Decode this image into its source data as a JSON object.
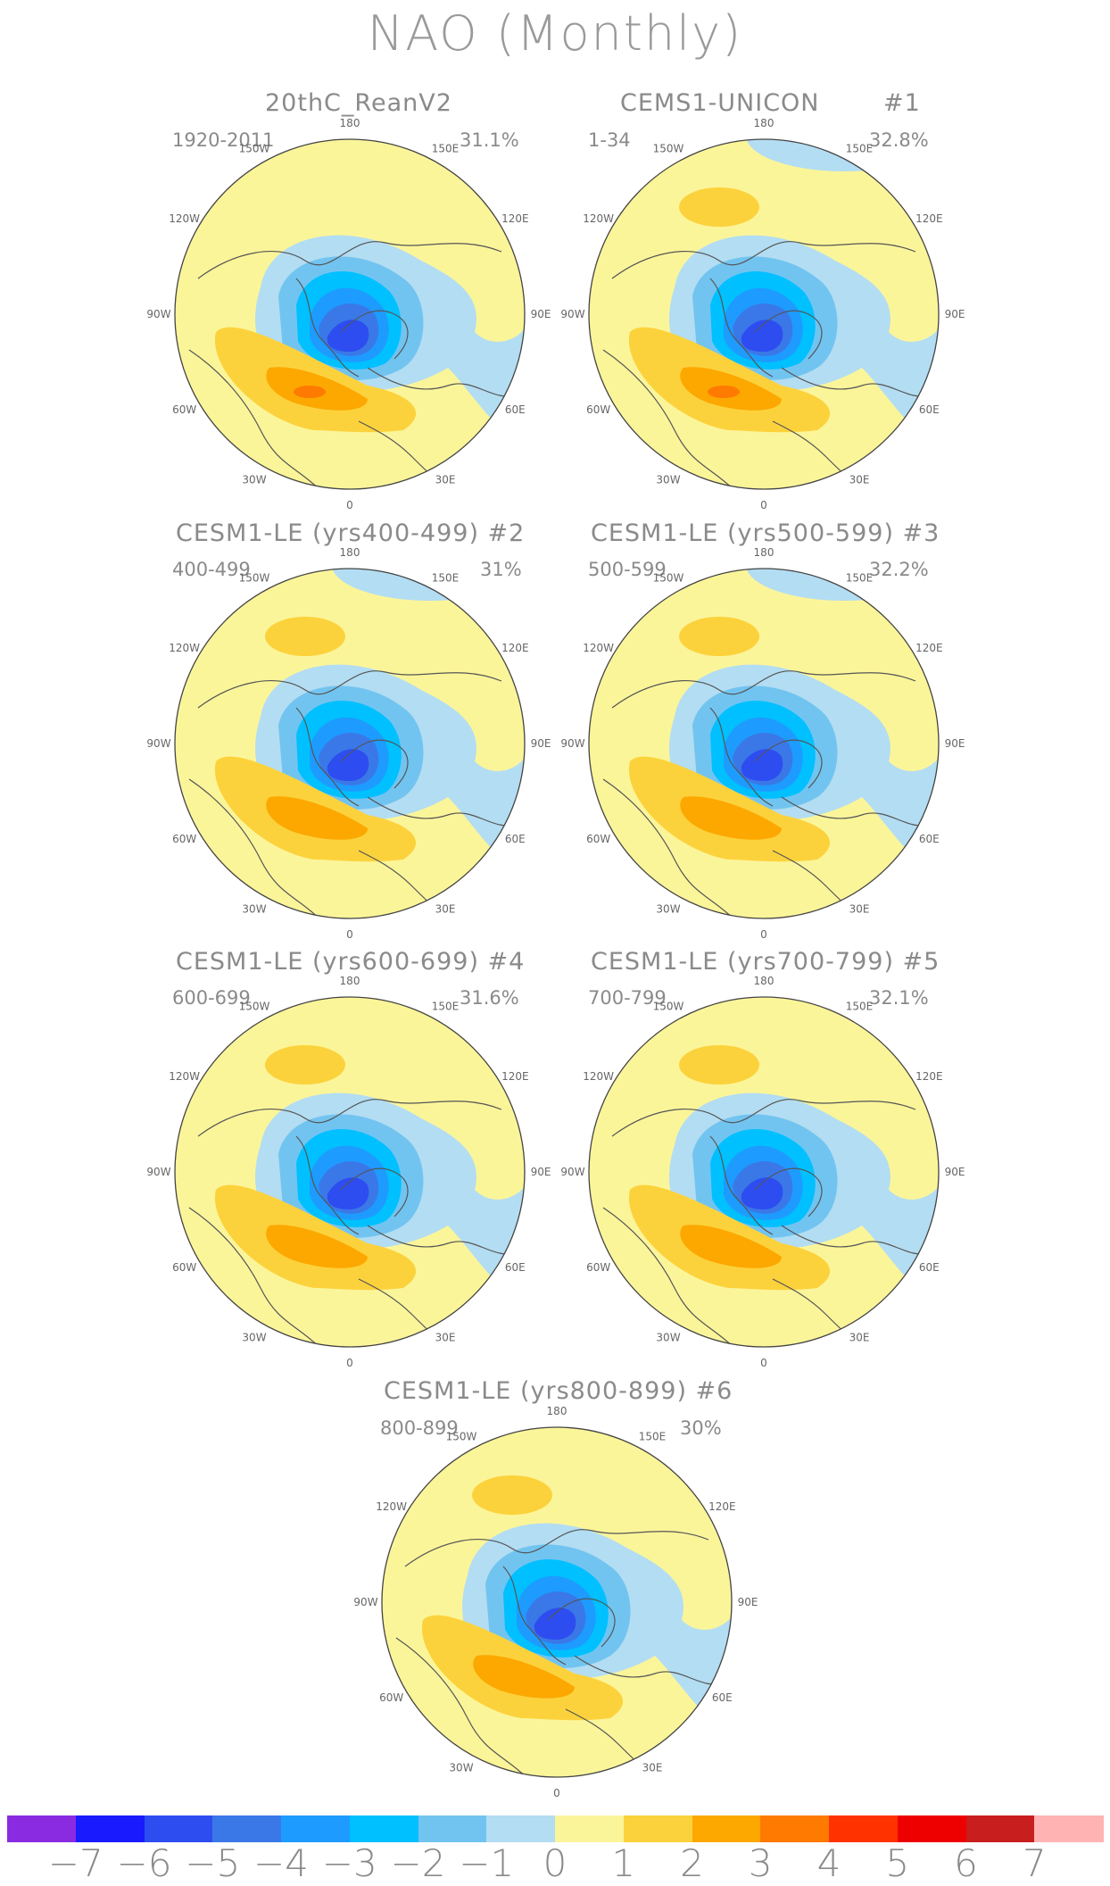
{
  "title": "NAO (Monthly)",
  "colors": {
    "land": "#555555",
    "border": "#444444"
  },
  "panels": [
    {
      "title": "20thC_ReanV2",
      "period": "1920-2011",
      "percent": "31.1%",
      "tag": ""
    },
    {
      "title": "CEMS1-UNICON",
      "period": "1-34",
      "percent": "32.8%",
      "tag": "#1"
    },
    {
      "title": "CESM1-LE (yrs400-499) #2",
      "period": "400-499",
      "percent": "31%",
      "tag": ""
    },
    {
      "title": "CESM1-LE (yrs500-599) #3",
      "period": "500-599",
      "percent": "32.2%",
      "tag": ""
    },
    {
      "title": "CESM1-LE (yrs600-699) #4",
      "period": "600-699",
      "percent": "31.6%",
      "tag": ""
    },
    {
      "title": "CESM1-LE (yrs700-799) #5",
      "period": "700-799",
      "percent": "32.1%",
      "tag": ""
    },
    {
      "title": "CESM1-LE (yrs800-899) #6",
      "period": "800-899",
      "percent": "30%",
      "tag": ""
    }
  ],
  "lon_labels": [
    "180",
    "150E",
    "120E",
    "90E",
    "60E",
    "30E",
    "0",
    "30W",
    "60W",
    "90W",
    "120W",
    "150W"
  ],
  "colorbar": {
    "colors": [
      "#8a2be2",
      "#1a1aff",
      "#2d4df0",
      "#3a78e8",
      "#1e9bff",
      "#00c0ff",
      "#72c4f0",
      "#b3ddf2",
      "#fbf59a",
      "#fcd23c",
      "#fca800",
      "#ff7a00",
      "#ff3200",
      "#ee0000",
      "#c81e1e",
      "#ffb3b3"
    ],
    "labels": [
      "-7",
      "-6",
      "-5",
      "-4",
      "-3",
      "-2",
      "-1",
      "0",
      "1",
      "2",
      "3",
      "4",
      "5",
      "6",
      "7"
    ]
  }
}
